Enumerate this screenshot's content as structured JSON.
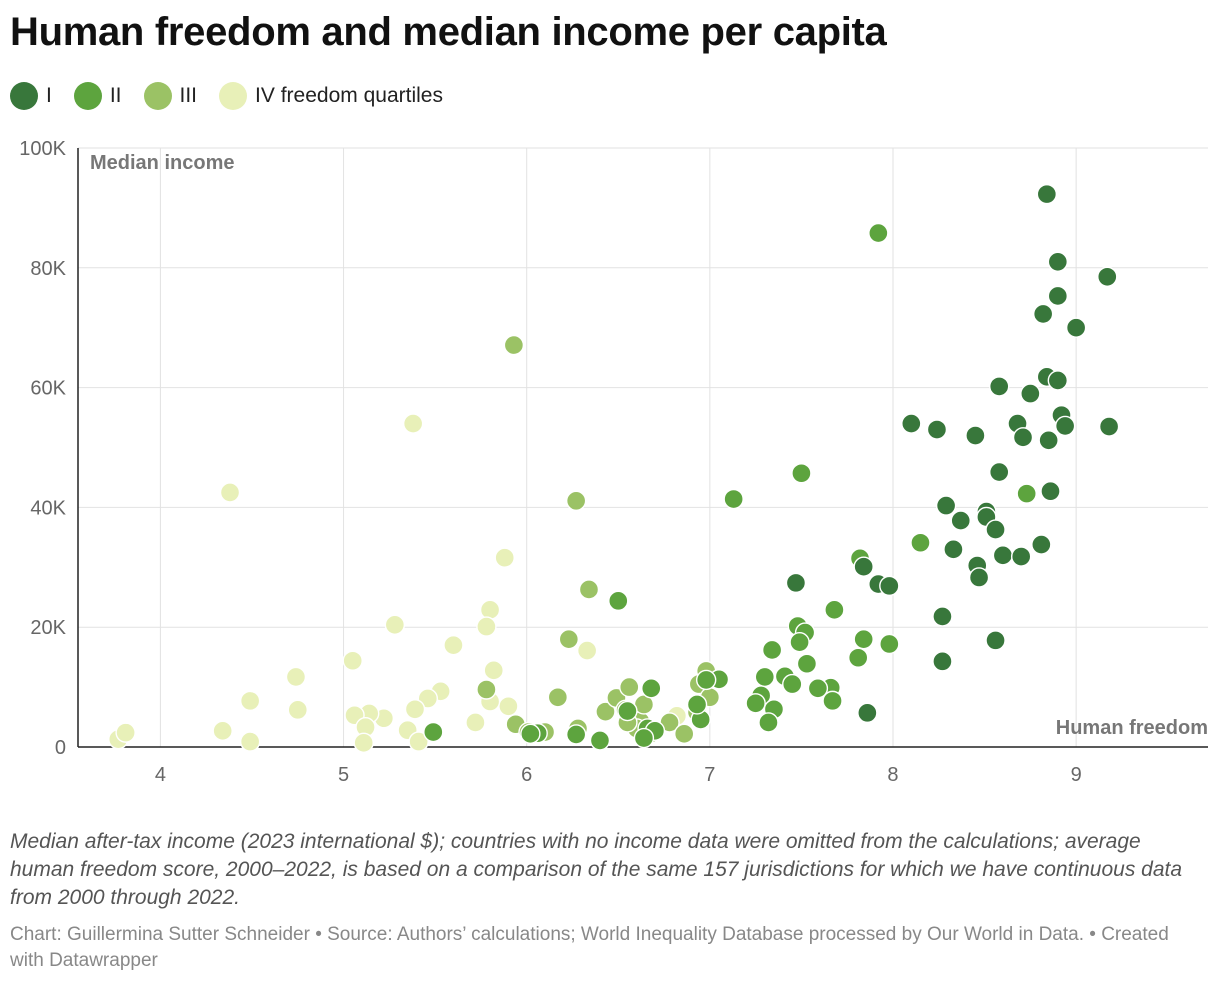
{
  "title": "Human freedom and median income per capita",
  "legend": [
    {
      "label": "I",
      "color": "#38773b"
    },
    {
      "label": "II",
      "color": "#5da43e"
    },
    {
      "label": "III",
      "color": "#9bc265"
    },
    {
      "label": "IV freedom quartiles",
      "color": "#e8f0b8"
    }
  ],
  "notes": "Median after-tax income (2023 international $); countries with no income data were omitted from the calculations; average human freedom score, 2000–2022, is based on a comparison of the same 157 jurisdictions for which we have continuous data from 2000 through 2022.",
  "credits": "Chart: Guillermina Sutter Schneider • Source: Authors’ calculations; World Inequality Database processed by Our World in Data. • Created with Datawrapper",
  "chart_data": {
    "type": "scatter",
    "xlabel": "Human freedom",
    "ylabel": "Median income",
    "xlim": [
      3.55,
      9.72
    ],
    "ylim": [
      0,
      100000
    ],
    "x_ticks": [
      {
        "value": 4,
        "label": "4"
      },
      {
        "value": 5,
        "label": "5"
      },
      {
        "value": 6,
        "label": "6"
      },
      {
        "value": 7,
        "label": "7"
      },
      {
        "value": 8,
        "label": "8"
      },
      {
        "value": 9,
        "label": "9"
      }
    ],
    "y_ticks": [
      {
        "value": 0,
        "label": "0"
      },
      {
        "value": 20000,
        "label": "20K"
      },
      {
        "value": 40000,
        "label": "40K"
      },
      {
        "value": 60000,
        "label": "60K"
      },
      {
        "value": 80000,
        "label": "80K"
      },
      {
        "value": 100000,
        "label": "100K"
      }
    ],
    "grid": true,
    "series": [
      {
        "name": "I",
        "color": "#38773b",
        "points": [
          [
            8.84,
            92300
          ],
          [
            8.9,
            81000
          ],
          [
            9.17,
            78500
          ],
          [
            8.9,
            75300
          ],
          [
            8.82,
            72300
          ],
          [
            9.0,
            70000
          ],
          [
            8.84,
            61800
          ],
          [
            8.9,
            61200
          ],
          [
            8.58,
            60200
          ],
          [
            8.75,
            59000
          ],
          [
            8.92,
            55400
          ],
          [
            8.1,
            54000
          ],
          [
            8.24,
            53000
          ],
          [
            8.68,
            54000
          ],
          [
            8.94,
            53600
          ],
          [
            9.18,
            53500
          ],
          [
            8.45,
            52000
          ],
          [
            8.71,
            51700
          ],
          [
            8.85,
            51200
          ],
          [
            8.58,
            45900
          ],
          [
            8.86,
            42700
          ],
          [
            8.29,
            40300
          ],
          [
            8.51,
            39300
          ],
          [
            8.37,
            37800
          ],
          [
            8.51,
            38400
          ],
          [
            8.56,
            36300
          ],
          [
            8.33,
            33000
          ],
          [
            8.81,
            33800
          ],
          [
            8.6,
            32000
          ],
          [
            8.7,
            31800
          ],
          [
            8.46,
            30300
          ],
          [
            8.47,
            28300
          ],
          [
            7.47,
            27400
          ],
          [
            7.92,
            27200
          ],
          [
            7.98,
            26900
          ],
          [
            8.27,
            21800
          ],
          [
            8.56,
            17800
          ],
          [
            8.27,
            14300
          ],
          [
            7.86,
            5700
          ],
          [
            7.84,
            30100
          ]
        ]
      },
      {
        "name": "II",
        "color": "#5da43e",
        "points": [
          [
            7.92,
            85800
          ],
          [
            7.5,
            45700
          ],
          [
            8.73,
            42300
          ],
          [
            7.13,
            41400
          ],
          [
            8.15,
            34100
          ],
          [
            7.82,
            31500
          ],
          [
            6.5,
            24400
          ],
          [
            7.68,
            22900
          ],
          [
            7.48,
            20200
          ],
          [
            7.52,
            19100
          ],
          [
            7.84,
            18000
          ],
          [
            7.98,
            17200
          ],
          [
            7.49,
            17500
          ],
          [
            7.34,
            16200
          ],
          [
            7.81,
            14900
          ],
          [
            7.53,
            13900
          ],
          [
            7.41,
            11800
          ],
          [
            7.3,
            11700
          ],
          [
            7.05,
            11300
          ],
          [
            6.98,
            11200
          ],
          [
            7.45,
            10500
          ],
          [
            7.66,
            9900
          ],
          [
            7.59,
            9800
          ],
          [
            7.28,
            8600
          ],
          [
            6.68,
            9800
          ],
          [
            7.25,
            7300
          ],
          [
            7.35,
            6300
          ],
          [
            7.67,
            7700
          ],
          [
            7.32,
            4100
          ],
          [
            6.95,
            4600
          ],
          [
            6.93,
            7100
          ],
          [
            6.66,
            3100
          ],
          [
            6.7,
            2700
          ],
          [
            6.64,
            1500
          ],
          [
            6.4,
            1100
          ],
          [
            6.06,
            2300
          ],
          [
            5.49,
            2500
          ],
          [
            6.27,
            2100
          ],
          [
            6.55,
            6000
          ],
          [
            6.02,
            2200
          ]
        ]
      },
      {
        "name": "III",
        "color": "#9bc265",
        "points": [
          [
            5.93,
            67100
          ],
          [
            6.27,
            41100
          ],
          [
            6.34,
            26300
          ],
          [
            6.23,
            18000
          ],
          [
            6.17,
            8300
          ],
          [
            5.78,
            9600
          ],
          [
            5.94,
            3800
          ],
          [
            6.1,
            2500
          ],
          [
            6.01,
            2500
          ],
          [
            6.28,
            3100
          ],
          [
            6.43,
            5900
          ],
          [
            6.49,
            8200
          ],
          [
            6.54,
            6200
          ],
          [
            6.56,
            10000
          ],
          [
            6.62,
            4300
          ],
          [
            6.64,
            7100
          ],
          [
            6.68,
            2300
          ],
          [
            6.78,
            4100
          ],
          [
            6.86,
            2200
          ],
          [
            6.94,
            10500
          ],
          [
            6.98,
            12700
          ],
          [
            7.0,
            8300
          ],
          [
            6.93,
            5800
          ],
          [
            6.6,
            3100
          ],
          [
            6.55,
            4100
          ]
        ]
      },
      {
        "name": "IV freedom quartiles",
        "color": "#e8f0b8",
        "points": [
          [
            5.38,
            54000
          ],
          [
            4.38,
            42500
          ],
          [
            5.88,
            31600
          ],
          [
            5.8,
            22900
          ],
          [
            5.78,
            20100
          ],
          [
            5.28,
            20400
          ],
          [
            5.6,
            17000
          ],
          [
            6.33,
            16100
          ],
          [
            5.05,
            14400
          ],
          [
            5.82,
            12800
          ],
          [
            4.74,
            11700
          ],
          [
            5.53,
            9300
          ],
          [
            5.46,
            8100
          ],
          [
            4.49,
            7700
          ],
          [
            4.75,
            6200
          ],
          [
            5.39,
            6300
          ],
          [
            5.9,
            6800
          ],
          [
            5.8,
            7600
          ],
          [
            5.72,
            4100
          ],
          [
            5.22,
            4800
          ],
          [
            5.14,
            5600
          ],
          [
            5.06,
            5300
          ],
          [
            5.12,
            3300
          ],
          [
            5.35,
            2800
          ],
          [
            5.11,
            700
          ],
          [
            4.34,
            2700
          ],
          [
            4.49,
            900
          ],
          [
            3.77,
            1300
          ],
          [
            3.81,
            2400
          ],
          [
            5.41,
            900
          ],
          [
            6.82,
            5200
          ]
        ]
      }
    ]
  }
}
